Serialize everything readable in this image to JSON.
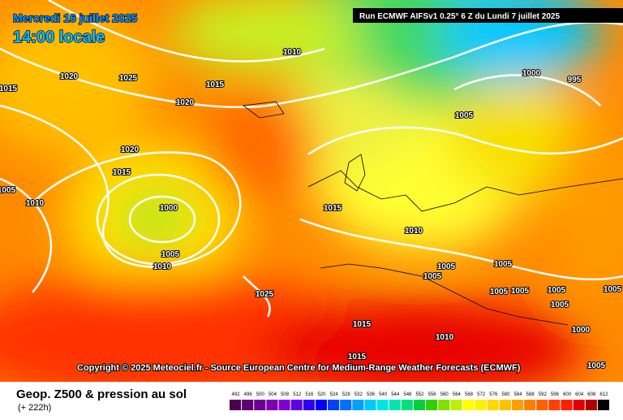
{
  "header": {
    "date": "Mercredi 16 juillet 2025",
    "time": "14:00 locale",
    "run": "Run ECMWF AIFSv1 0.25° 6 Z du Lundi 7 juillet 2025"
  },
  "copyright": "Copyright © 2025 Meteociel.fr - Source European Centre for Medium-Range Weather Forecasts (ECMWF)",
  "isobar_labels": [
    "1015",
    "1020",
    "1025",
    "1010",
    "1015",
    "1020",
    "1000",
    "995",
    "1005",
    "1020",
    "1015",
    "1005",
    "1010",
    "1000",
    "1015",
    "1010",
    "1005",
    "1010",
    "1025",
    "1005",
    "1005",
    "1005",
    "1005",
    "1005",
    "1005",
    "1005",
    "1005",
    "1015",
    "1010",
    "1015",
    "1005",
    "1000"
  ],
  "footer": {
    "title": "Geop. Z500 & pression au sol",
    "lead": "(+ 222h)"
  },
  "colorbar": {
    "labels": [
      492,
      496,
      500,
      504,
      508,
      512,
      516,
      520,
      524,
      528,
      532,
      536,
      540,
      544,
      548,
      552,
      556,
      560,
      564,
      568,
      572,
      576,
      580,
      584,
      588,
      592,
      596,
      600,
      604,
      608,
      612
    ],
    "colors": [
      "#4b0050",
      "#5e0075",
      "#6a0090",
      "#7a00b0",
      "#8000d0",
      "#6000e0",
      "#3000f0",
      "#0000ff",
      "#0040ff",
      "#0070ff",
      "#00a0ff",
      "#00c8ff",
      "#00e6e6",
      "#00e6b0",
      "#00e080",
      "#00d040",
      "#30d000",
      "#80e000",
      "#c0f000",
      "#ffff00",
      "#fff000",
      "#ffd800",
      "#ffc000",
      "#ffa000",
      "#ff8000",
      "#ff6000",
      "#ff4000",
      "#ff2000",
      "#e00000",
      "#b00000",
      "#000000"
    ]
  }
}
